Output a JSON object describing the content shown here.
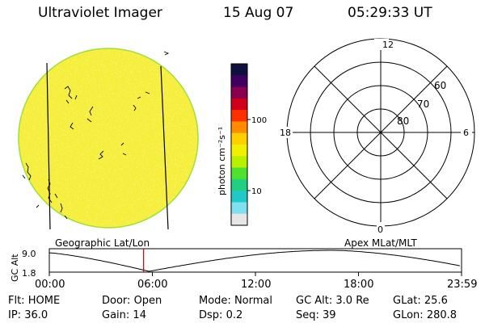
{
  "header": {
    "title": "Ultraviolet Imager",
    "date": "15 Aug 07",
    "time": "05:29:33 UT"
  },
  "colorbar": {
    "label": "photon cm⁻²s⁻¹",
    "ticks": [
      "100",
      "10"
    ],
    "colors": [
      "#101040",
      "#400060",
      "#8a0050",
      "#d0001a",
      "#ff3000",
      "#ff8c00",
      "#ffd000",
      "#f0f000",
      "#b8f000",
      "#50e030",
      "#20d080",
      "#20c8c8",
      "#80e0f0",
      "#e6e6e6"
    ]
  },
  "image_disk": {
    "base_color": "#f5ee3a",
    "rim_color": "#9ee03a",
    "speckle_color": "#fff6a0"
  },
  "polar_grid": {
    "mlt_labels": {
      "top": "12",
      "right": "6",
      "bottom": "0",
      "left": "18"
    },
    "lat_labels": [
      "60",
      "70",
      "80"
    ]
  },
  "orbit_plot": {
    "left_title": "Geographic Lat/Lon",
    "right_title": "Apex MLat/MLT",
    "ylabel": "GC Alt",
    "yticks": [
      "9.0",
      "1.8"
    ],
    "xticks": [
      "00:00",
      "06:00",
      "12:00",
      "18:00",
      "23:59"
    ],
    "marker_color": "#cc0000",
    "marker_time_hours": 5.49
  },
  "status": {
    "row1": [
      {
        "label": "Flt:",
        "value": "HOME"
      },
      {
        "label": "Door:",
        "value": "Open"
      },
      {
        "label": "Mode:",
        "value": "Normal"
      },
      {
        "label": "GC Alt:",
        "value": "3.0 Re"
      },
      {
        "label": "GLat:",
        "value": "25.6"
      }
    ],
    "row2": [
      {
        "label": "IP:",
        "value": "36.0"
      },
      {
        "label": "Gain:",
        "value": "14"
      },
      {
        "label": "Dsp:",
        "value": "0.2"
      },
      {
        "label": "Seq:",
        "value": "39"
      },
      {
        "label": "GLon:",
        "value": "280.8"
      }
    ]
  }
}
